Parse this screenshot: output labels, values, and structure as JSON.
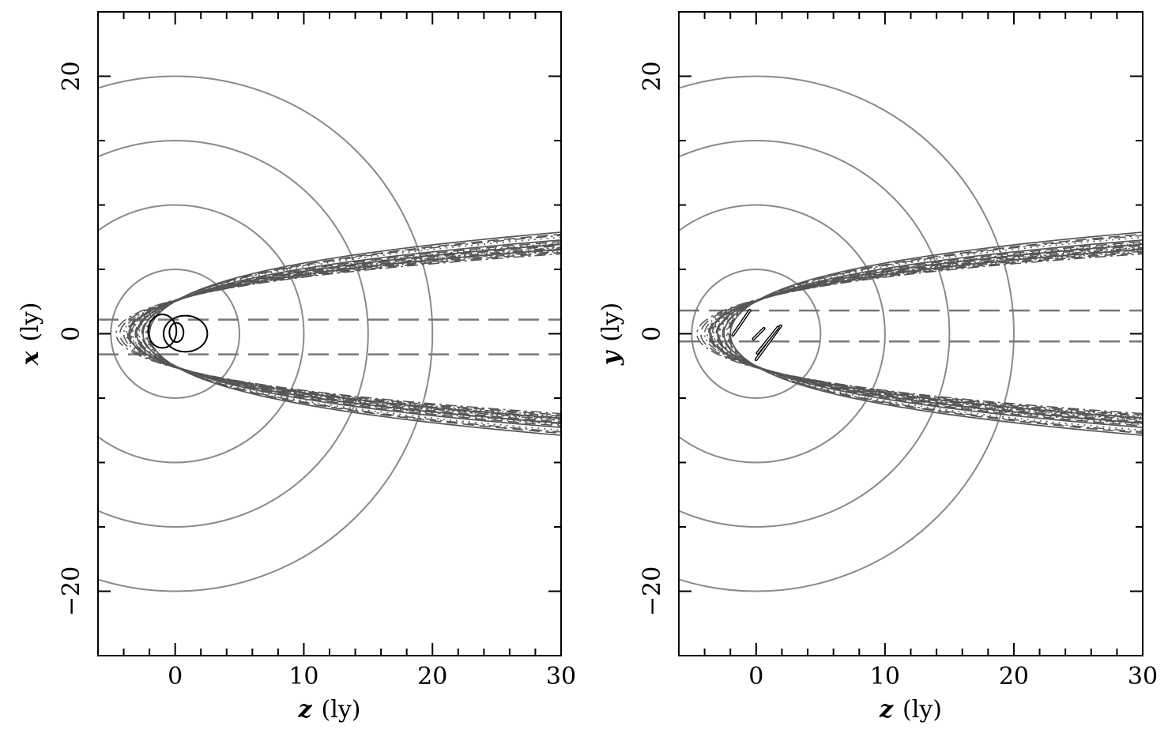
{
  "figure": {
    "panel_count": 2
  },
  "chart_data": [
    {
      "type": "line",
      "panel": "left",
      "title": "",
      "xlabel_var": "z",
      "xlabel_unit": "(ly)",
      "ylabel_var": "x",
      "ylabel_unit": "(ly)",
      "xlim": [
        -6,
        30
      ],
      "ylim": [
        -25,
        25
      ],
      "xticks": [
        {
          "value": 0,
          "label": "0"
        },
        {
          "value": 10,
          "label": "10"
        },
        {
          "value": 20,
          "label": "20"
        },
        {
          "value": 30,
          "label": "30"
        }
      ],
      "yticks": [
        {
          "value": -20,
          "label": "−20"
        },
        {
          "value": 0,
          "label": "0"
        },
        {
          "value": 20,
          "label": "20"
        }
      ],
      "circles": {
        "center": [
          0,
          0
        ],
        "radii": [
          5,
          10,
          15,
          20
        ],
        "color": "#8a8a8a"
      },
      "dashed_lines_y": [
        1.1,
        -1.6
      ],
      "parabolas": [
        {
          "vertex": -2.0,
          "b": 0.29,
          "b2": 0.0036,
          "style": "solid"
        },
        {
          "vertex": -2.5,
          "b": 0.37,
          "b2": 0.0046,
          "style": "solid"
        },
        {
          "vertex": -3.0,
          "b": 0.43,
          "b2": 0.0053,
          "style": "solid"
        },
        {
          "vertex": -3.6,
          "b": 0.51,
          "b2": 0.0063,
          "style": "solid"
        },
        {
          "vertex": -2.1,
          "b": 0.31,
          "b2": 0.0038,
          "style": "dashed"
        },
        {
          "vertex": -2.6,
          "b": 0.39,
          "b2": 0.0048,
          "style": "dashed"
        },
        {
          "vertex": -3.1,
          "b": 0.45,
          "b2": 0.0055,
          "style": "dashed"
        },
        {
          "vertex": -3.7,
          "b": 0.52,
          "b2": 0.0064,
          "style": "dashed"
        },
        {
          "vertex": -4.3,
          "b": 0.58,
          "b2": 0.0071,
          "style": "dashed"
        },
        {
          "vertex": -2.3,
          "b": 0.34,
          "b2": 0.0042,
          "style": "dotted"
        },
        {
          "vertex": -2.8,
          "b": 0.41,
          "b2": 0.005,
          "style": "dotted"
        },
        {
          "vertex": -3.3,
          "b": 0.47,
          "b2": 0.0058,
          "style": "dotted"
        },
        {
          "vertex": -3.8,
          "b": 0.53,
          "b2": 0.0065,
          "style": "dotted"
        },
        {
          "vertex": -2.2,
          "b": 0.32,
          "b2": 0.004,
          "style": "dashdot"
        },
        {
          "vertex": -2.9,
          "b": 0.42,
          "b2": 0.0052,
          "style": "dashdot"
        },
        {
          "vertex": -3.5,
          "b": 0.5,
          "b2": 0.0061,
          "style": "dashdot"
        },
        {
          "vertex": -4.6,
          "b": 0.61,
          "b2": 0.0075,
          "style": "dashdot"
        },
        {
          "vertex": -3.4,
          "b": 0.48,
          "b2": 0.0059,
          "style": "dashdotdot"
        },
        {
          "vertex": -4.0,
          "b": 0.55,
          "b2": 0.0068,
          "style": "dashdotdot"
        }
      ],
      "orbits": [
        {
          "kind": "ellipse",
          "cx": -1.0,
          "cy": 0.2,
          "rx": 1.1,
          "ry": 1.3
        },
        {
          "kind": "ellipse",
          "cx": 0.8,
          "cy": 0.0,
          "rx": 1.7,
          "ry": 1.4
        },
        {
          "kind": "ellipse",
          "cx": 0.1,
          "cy": 0.1,
          "rx": 0.55,
          "ry": 0.75
        }
      ]
    },
    {
      "type": "line",
      "panel": "right",
      "title": "",
      "xlabel_var": "z",
      "xlabel_unit": "(ly)",
      "ylabel_var": "y",
      "ylabel_unit": "(ly)",
      "xlim": [
        -6,
        30
      ],
      "ylim": [
        -25,
        25
      ],
      "xticks": [
        {
          "value": 0,
          "label": "0"
        },
        {
          "value": 10,
          "label": "10"
        },
        {
          "value": 20,
          "label": "20"
        },
        {
          "value": 30,
          "label": "30"
        }
      ],
      "yticks": [
        {
          "value": -20,
          "label": "−20"
        },
        {
          "value": 0,
          "label": "0"
        },
        {
          "value": 20,
          "label": "20"
        }
      ],
      "circles": {
        "center": [
          0,
          0
        ],
        "radii": [
          5,
          10,
          15,
          20
        ],
        "color": "#8a8a8a"
      },
      "dashed_lines_y": [
        1.8,
        -0.6
      ],
      "parabolas": [
        {
          "vertex": -2.0,
          "b": 0.29,
          "b2": 0.0036,
          "style": "solid"
        },
        {
          "vertex": -2.5,
          "b": 0.37,
          "b2": 0.0046,
          "style": "solid"
        },
        {
          "vertex": -3.0,
          "b": 0.43,
          "b2": 0.0053,
          "style": "solid"
        },
        {
          "vertex": -3.6,
          "b": 0.51,
          "b2": 0.0063,
          "style": "solid"
        },
        {
          "vertex": -2.1,
          "b": 0.31,
          "b2": 0.0038,
          "style": "dashed"
        },
        {
          "vertex": -2.6,
          "b": 0.39,
          "b2": 0.0048,
          "style": "dashed"
        },
        {
          "vertex": -3.1,
          "b": 0.45,
          "b2": 0.0055,
          "style": "dashed"
        },
        {
          "vertex": -3.7,
          "b": 0.52,
          "b2": 0.0064,
          "style": "dashed"
        },
        {
          "vertex": -4.3,
          "b": 0.58,
          "b2": 0.0071,
          "style": "dashed"
        },
        {
          "vertex": -2.3,
          "b": 0.34,
          "b2": 0.0042,
          "style": "dotted"
        },
        {
          "vertex": -2.8,
          "b": 0.41,
          "b2": 0.005,
          "style": "dotted"
        },
        {
          "vertex": -3.3,
          "b": 0.47,
          "b2": 0.0058,
          "style": "dotted"
        },
        {
          "vertex": -3.8,
          "b": 0.53,
          "b2": 0.0065,
          "style": "dotted"
        },
        {
          "vertex": -2.2,
          "b": 0.32,
          "b2": 0.004,
          "style": "dashdot"
        },
        {
          "vertex": -2.9,
          "b": 0.42,
          "b2": 0.0052,
          "style": "dashdot"
        },
        {
          "vertex": -3.5,
          "b": 0.5,
          "b2": 0.0061,
          "style": "dashdot"
        },
        {
          "vertex": -4.6,
          "b": 0.61,
          "b2": 0.0075,
          "style": "dashdot"
        },
        {
          "vertex": -3.4,
          "b": 0.48,
          "b2": 0.0059,
          "style": "dashdotdot"
        },
        {
          "vertex": -4.0,
          "b": 0.55,
          "b2": 0.0068,
          "style": "dashdotdot"
        }
      ],
      "orbits": [
        {
          "kind": "line",
          "points": [
            [
              -1.8,
              -0.1
            ],
            [
              -0.5,
              1.8
            ]
          ]
        },
        {
          "kind": "line",
          "points": [
            [
              -0.2,
              -0.4
            ],
            [
              0.6,
              0.4
            ]
          ]
        },
        {
          "kind": "line",
          "points": [
            [
              0.0,
              -2.0
            ],
            [
              1.9,
              0.6
            ]
          ]
        },
        {
          "kind": "line",
          "points": [
            [
              0.1,
              -1.5
            ],
            [
              1.7,
              0.5
            ]
          ]
        }
      ]
    }
  ]
}
